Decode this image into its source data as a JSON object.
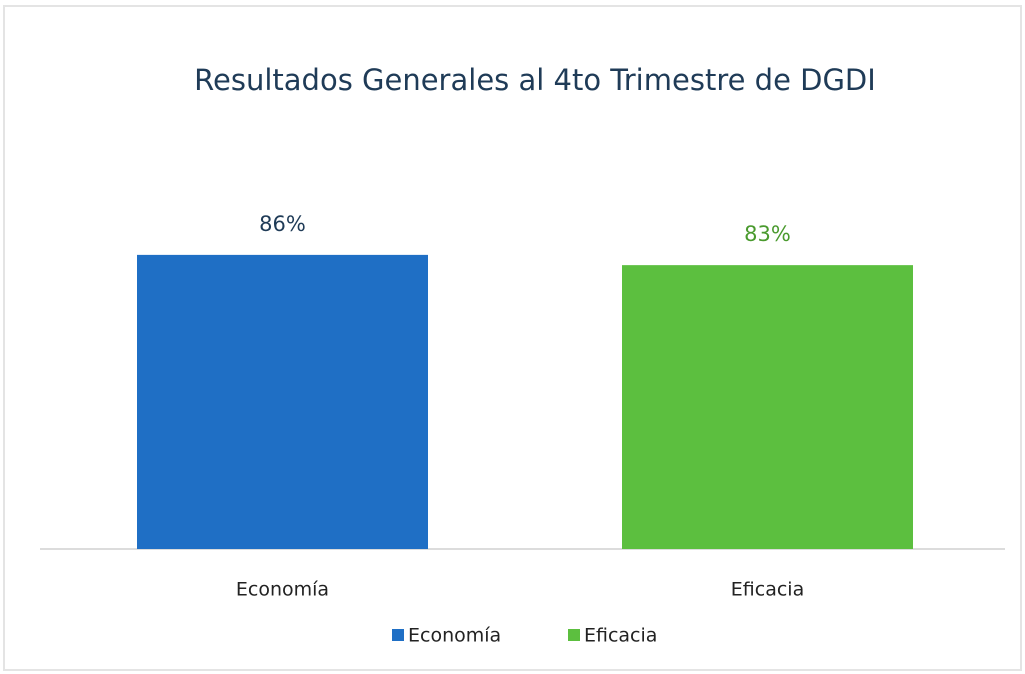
{
  "chart_data": {
    "type": "bar",
    "title": "Resultados Generales al 4to Trimestre de DGDI",
    "categories": [
      "Economía",
      "Eficacia"
    ],
    "values": [
      86,
      83
    ],
    "value_labels": [
      "86%",
      "83%"
    ],
    "colors": [
      "#1f6fc5",
      "#5cbf3f"
    ],
    "value_label_colors": [
      "#1f3b57",
      "#4a9a2e"
    ],
    "ylim": [
      0,
      100
    ],
    "legend": "bottom"
  }
}
